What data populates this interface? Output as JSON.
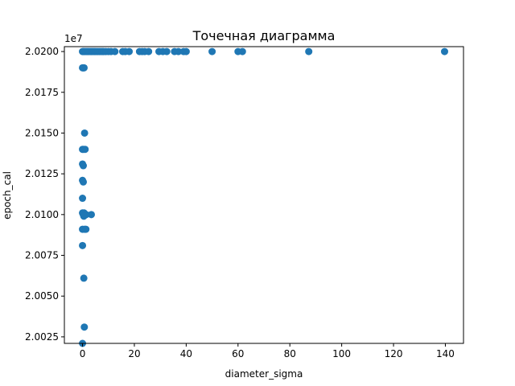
{
  "chart_data": {
    "type": "scatter",
    "title": "Точечная диаграмма",
    "xlabel": "diameter_sigma",
    "ylabel": "epoch_cal",
    "y_offset_label": "1e7",
    "xlim": [
      -7.0,
      147.0
    ],
    "ylim": [
      20021000,
      20203000
    ],
    "xticks": [
      0,
      20,
      40,
      60,
      80,
      100,
      120,
      140
    ],
    "xtick_labels": [
      "0",
      "20",
      "40",
      "60",
      "80",
      "100",
      "120",
      "140"
    ],
    "yticks": [
      20025000,
      20050000,
      20075000,
      20100000,
      20125000,
      20150000,
      20175000,
      20200000
    ],
    "ytick_labels": [
      "2.0025",
      "2.0050",
      "2.0075",
      "2.0100",
      "2.0125",
      "2.0150",
      "2.0175",
      "2.0200"
    ],
    "marker_color": "#1f77b4",
    "grid": false,
    "legend": "none",
    "points": [
      {
        "x": 0.0,
        "y": 20200000
      },
      {
        "x": 0.3,
        "y": 20200000
      },
      {
        "x": 0.6,
        "y": 20200000
      },
      {
        "x": 1.0,
        "y": 20200000
      },
      {
        "x": 1.4,
        "y": 20200000
      },
      {
        "x": 1.8,
        "y": 20200000
      },
      {
        "x": 2.2,
        "y": 20200000
      },
      {
        "x": 2.6,
        "y": 20200000
      },
      {
        "x": 3.0,
        "y": 20200000
      },
      {
        "x": 3.4,
        "y": 20200000
      },
      {
        "x": 3.8,
        "y": 20200000
      },
      {
        "x": 4.2,
        "y": 20200000
      },
      {
        "x": 4.6,
        "y": 20200000
      },
      {
        "x": 5.0,
        "y": 20200000
      },
      {
        "x": 5.5,
        "y": 20200000
      },
      {
        "x": 6.0,
        "y": 20200000
      },
      {
        "x": 6.5,
        "y": 20200000
      },
      {
        "x": 7.0,
        "y": 20200000
      },
      {
        "x": 7.6,
        "y": 20200000
      },
      {
        "x": 8.2,
        "y": 20200000
      },
      {
        "x": 9.0,
        "y": 20200000
      },
      {
        "x": 10.0,
        "y": 20200000
      },
      {
        "x": 11.0,
        "y": 20200000
      },
      {
        "x": 12.5,
        "y": 20200000
      },
      {
        "x": 15.5,
        "y": 20200000
      },
      {
        "x": 16.5,
        "y": 20200000
      },
      {
        "x": 18.0,
        "y": 20200000
      },
      {
        "x": 22.0,
        "y": 20200000
      },
      {
        "x": 23.0,
        "y": 20200000
      },
      {
        "x": 24.0,
        "y": 20200000
      },
      {
        "x": 25.5,
        "y": 20200000
      },
      {
        "x": 29.5,
        "y": 20200000
      },
      {
        "x": 31.0,
        "y": 20200000
      },
      {
        "x": 32.5,
        "y": 20200000
      },
      {
        "x": 35.5,
        "y": 20200000
      },
      {
        "x": 37.0,
        "y": 20200000
      },
      {
        "x": 39.0,
        "y": 20200000
      },
      {
        "x": 40.0,
        "y": 20200000
      },
      {
        "x": 50.0,
        "y": 20200000
      },
      {
        "x": 60.0,
        "y": 20200000
      },
      {
        "x": 61.7,
        "y": 20200000
      },
      {
        "x": 87.3,
        "y": 20200000
      },
      {
        "x": 139.7,
        "y": 20200000
      },
      {
        "x": 0.0,
        "y": 20190000
      },
      {
        "x": 0.3,
        "y": 20190000
      },
      {
        "x": 0.6,
        "y": 20190000
      },
      {
        "x": 0.8,
        "y": 20150000
      },
      {
        "x": 0.0,
        "y": 20140000
      },
      {
        "x": 0.4,
        "y": 20140000
      },
      {
        "x": 1.0,
        "y": 20140000
      },
      {
        "x": 0.0,
        "y": 20131000
      },
      {
        "x": 0.3,
        "y": 20130000
      },
      {
        "x": 0.0,
        "y": 20121000
      },
      {
        "x": 0.3,
        "y": 20120000
      },
      {
        "x": 0.0,
        "y": 20110000
      },
      {
        "x": 0.0,
        "y": 20101000
      },
      {
        "x": 0.3,
        "y": 20100000
      },
      {
        "x": 0.6,
        "y": 20101000
      },
      {
        "x": 1.0,
        "y": 20100000
      },
      {
        "x": 1.4,
        "y": 20100000
      },
      {
        "x": 0.5,
        "y": 20099000
      },
      {
        "x": 3.4,
        "y": 20100000
      },
      {
        "x": 0.0,
        "y": 20091000
      },
      {
        "x": 0.8,
        "y": 20091000
      },
      {
        "x": 1.3,
        "y": 20091000
      },
      {
        "x": 0.0,
        "y": 20081000
      },
      {
        "x": 0.5,
        "y": 20061000
      },
      {
        "x": 0.7,
        "y": 20031000
      },
      {
        "x": 0.0,
        "y": 20021000
      }
    ]
  }
}
